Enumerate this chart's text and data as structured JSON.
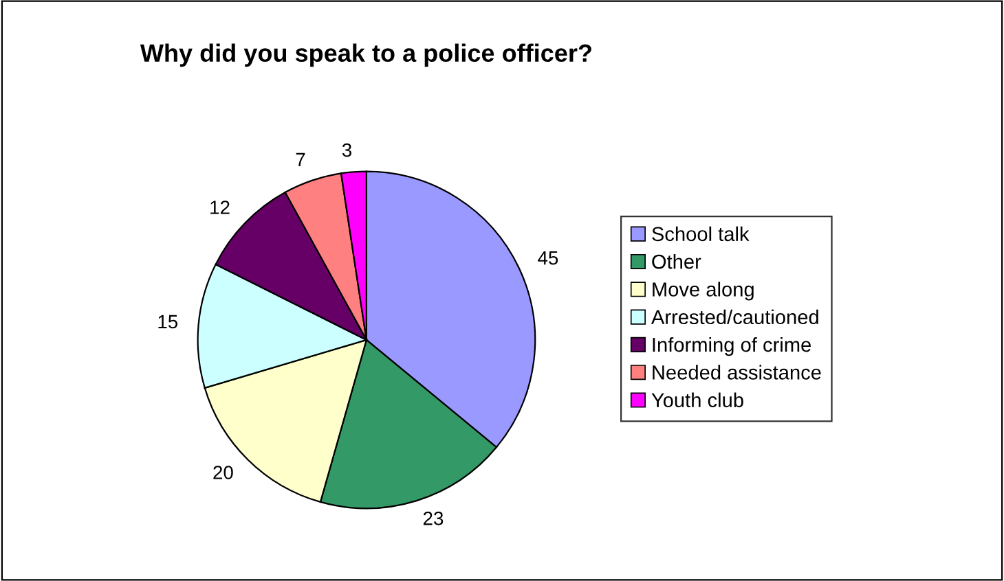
{
  "chart_data": {
    "type": "pie",
    "title": "Why did you speak to a police officer?",
    "categories": [
      "School talk",
      "Other",
      "Move along",
      "Arrested/cautioned",
      "Informing of crime",
      "Needed assistance",
      "Youth club"
    ],
    "values": [
      45,
      23,
      20,
      15,
      12,
      7,
      3
    ],
    "colors": [
      "#9999ff",
      "#339966",
      "#ffffcc",
      "#ccffff",
      "#660066",
      "#ff8080",
      "#ff00ff"
    ],
    "data_labels": true,
    "legend": "right"
  }
}
